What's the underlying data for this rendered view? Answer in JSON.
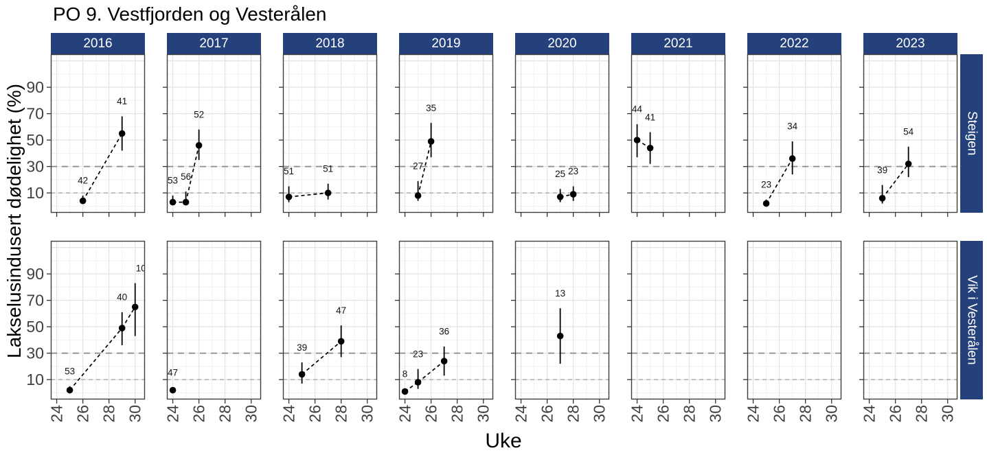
{
  "chart_data": {
    "type": "scatter",
    "title": "PO 9. Vestfjorden og Vesterålen",
    "xlabel": "Uke",
    "ylabel": "Lakselusindusert dødelighet (%)",
    "x_ticks": [
      24,
      26,
      28,
      30
    ],
    "x_minor": [
      25,
      27,
      29
    ],
    "x_range": [
      23.55,
      30.75
    ],
    "y_ticks": [
      10,
      30,
      50,
      70,
      90
    ],
    "y_major_unlabeled": [
      110
    ],
    "y_minor": [
      0,
      20,
      40,
      60,
      80,
      100
    ],
    "y_range": [
      -5,
      115
    ],
    "ref_lines": [
      10,
      30
    ],
    "grid": true,
    "legend": "none",
    "col_facets": [
      "2016",
      "2017",
      "2018",
      "2019",
      "2020",
      "2021",
      "2022",
      "2023"
    ],
    "row_facets": [
      "Steigen",
      "Vik i Vesterålen"
    ],
    "colors": {
      "strip_bg": "#25417C",
      "strip_text": "#FFFFFF",
      "point": "#000000",
      "ref_line_30": "#8A8A8A",
      "ref_line_10": "#ADADAD",
      "grid_major": "#E3E3E3",
      "grid_minor": "#F1F1F1",
      "panel_border": "#3C3C3C",
      "tick_color": "#333333",
      "tick_text": "#404040"
    },
    "panels": [
      {
        "row": "Steigen",
        "col": "2016",
        "points": [
          {
            "week": 26,
            "value": 4,
            "lo": 2,
            "hi": 8,
            "n": "42"
          },
          {
            "week": 29,
            "value": 55,
            "lo": 42,
            "hi": 68,
            "n": "41"
          }
        ]
      },
      {
        "row": "Steigen",
        "col": "2017",
        "points": [
          {
            "week": 24,
            "value": 3,
            "lo": 1,
            "hi": 8,
            "n": "53"
          },
          {
            "week": 25,
            "value": 3,
            "lo": 1,
            "hi": 11,
            "n": "56"
          },
          {
            "week": 26,
            "value": 46,
            "lo": 35,
            "hi": 58,
            "n": "52"
          }
        ]
      },
      {
        "row": "Steigen",
        "col": "2018",
        "points": [
          {
            "week": 24,
            "value": 7,
            "lo": 3,
            "hi": 15,
            "n": "51"
          },
          {
            "week": 27,
            "value": 10,
            "lo": 5,
            "hi": 17,
            "n": "51"
          }
        ]
      },
      {
        "row": "Steigen",
        "col": "2019",
        "points": [
          {
            "week": 25,
            "value": 8,
            "lo": 4,
            "hi": 19,
            "n": "27"
          },
          {
            "week": 26,
            "value": 49,
            "lo": 37,
            "hi": 63,
            "n": "35"
          }
        ]
      },
      {
        "row": "Steigen",
        "col": "2020",
        "points": [
          {
            "week": 27,
            "value": 7,
            "lo": 3,
            "hi": 13,
            "n": "25"
          },
          {
            "week": 28,
            "value": 9,
            "lo": 4,
            "hi": 15,
            "n": "23"
          }
        ]
      },
      {
        "row": "Steigen",
        "col": "2021",
        "points": [
          {
            "week": 24,
            "value": 50,
            "lo": 37,
            "hi": 62,
            "n": "44"
          },
          {
            "week": 25,
            "value": 44,
            "lo": 32,
            "hi": 56,
            "n": "41"
          }
        ]
      },
      {
        "row": "Steigen",
        "col": "2022",
        "points": [
          {
            "week": 25,
            "value": 2,
            "lo": 1,
            "hi": 5,
            "n": "23"
          },
          {
            "week": 27,
            "value": 36,
            "lo": 24,
            "hi": 49,
            "n": "34"
          }
        ]
      },
      {
        "row": "Steigen",
        "col": "2023",
        "points": [
          {
            "week": 25,
            "value": 6,
            "lo": 2,
            "hi": 16,
            "n": "39"
          },
          {
            "week": 27,
            "value": 32,
            "lo": 22,
            "hi": 45,
            "n": "54"
          }
        ]
      },
      {
        "row": "Vik i Vesterålen",
        "col": "2016",
        "points": [
          {
            "week": 25,
            "value": 2,
            "lo": 1,
            "hi": 5,
            "n": "53"
          },
          {
            "week": 29,
            "value": 49,
            "lo": 36,
            "hi": 61,
            "n": "40"
          },
          {
            "week": 30,
            "value": 65,
            "lo": 43,
            "hi": 83,
            "n": "10",
            "label_week": 30.45
          }
        ]
      },
      {
        "row": "Vik i Vesterålen",
        "col": "2017",
        "points": [
          {
            "week": 24,
            "value": 2,
            "lo": 1,
            "hi": 4,
            "n": "47"
          }
        ]
      },
      {
        "row": "Vik i Vesterålen",
        "col": "2018",
        "points": [
          {
            "week": 25,
            "value": 14,
            "lo": 7,
            "hi": 23,
            "n": "39"
          },
          {
            "week": 28,
            "value": 39,
            "lo": 27,
            "hi": 51,
            "n": "47"
          }
        ]
      },
      {
        "row": "Vik i Vesterålen",
        "col": "2019",
        "points": [
          {
            "week": 24,
            "value": 1,
            "lo": 0,
            "hi": 3,
            "n": "8"
          },
          {
            "week": 25,
            "value": 8,
            "lo": 3,
            "hi": 18,
            "n": "23"
          },
          {
            "week": 27,
            "value": 24,
            "lo": 13,
            "hi": 35,
            "n": "36"
          }
        ]
      },
      {
        "row": "Vik i Vesterålen",
        "col": "2020",
        "points": [
          {
            "week": 27,
            "value": 43,
            "lo": 22,
            "hi": 64,
            "n": "13"
          }
        ]
      },
      {
        "row": "Vik i Vesterålen",
        "col": "2021",
        "points": []
      },
      {
        "row": "Vik i Vesterålen",
        "col": "2022",
        "points": []
      },
      {
        "row": "Vik i Vesterålen",
        "col": "2023",
        "points": []
      }
    ]
  }
}
